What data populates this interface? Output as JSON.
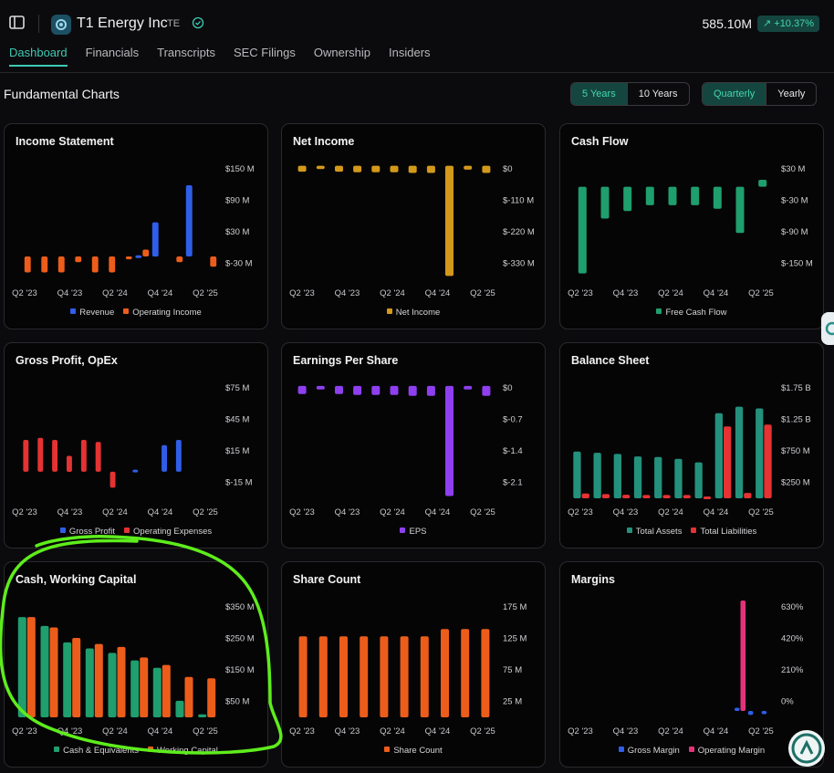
{
  "header": {
    "company": "T1 Energy Inc",
    "ticker": "TE",
    "market_cap": "585.10M",
    "change": "+10.37%"
  },
  "tabs": [
    "Dashboard",
    "Financials",
    "Transcripts",
    "SEC Filings",
    "Ownership",
    "Insiders"
  ],
  "section_title": "Fundamental Charts",
  "range_options": [
    "5 Years",
    "10 Years"
  ],
  "period_options": [
    "Quarterly",
    "Yearly"
  ],
  "colors": {
    "accent": "#3ec9b2",
    "blue": "#2f5ee8",
    "orange": "#ec5d1b",
    "gold": "#d3991a",
    "green": "#1f9e6e",
    "red": "#e53232",
    "purple": "#8e3ff0",
    "teal": "#23917c",
    "pink": "#e2337a"
  },
  "annotation": "green hand-drawn circle",
  "chart_data": [
    {
      "type": "bar",
      "title": "Income Statement",
      "x_ticks": [
        "Q2 '23",
        "Q4 '23",
        "Q2 '24",
        "Q4 '24",
        "Q2 '25"
      ],
      "y_ticks": [
        "$150 M",
        "$90 M",
        "$30 M",
        "$-30 M"
      ],
      "ylim": [
        -40,
        165
      ],
      "series": [
        {
          "name": "Revenue",
          "color": "#2f5ee8",
          "values": [
            0,
            0,
            0,
            0,
            0,
            0,
            0,
            2,
            60,
            0,
            125,
            0
          ]
        },
        {
          "name": "Operating Income",
          "color": "#ec5d1b",
          "values": [
            -28,
            -28,
            -28,
            -10,
            -28,
            -28,
            -5,
            12,
            0,
            -10,
            0,
            -18
          ]
        }
      ]
    },
    {
      "type": "bar",
      "title": "Net Income",
      "x_ticks": [
        "Q2 '23",
        "Q4 '23",
        "Q2 '24",
        "Q4 '24",
        "Q2 '25"
      ],
      "y_ticks": [
        "$0",
        "$-110 M",
        "$-220 M",
        "$-330 M"
      ],
      "ylim": [
        -345,
        10
      ],
      "series": [
        {
          "name": "Net Income",
          "color": "#d3991a",
          "values": [
            -18,
            -10,
            -18,
            -20,
            -20,
            -20,
            -22,
            -22,
            -335,
            -12,
            -22
          ]
        }
      ]
    },
    {
      "type": "bar",
      "title": "Cash Flow",
      "x_ticks": [
        "Q2 '23",
        "Q4 '23",
        "Q2 '24",
        "Q4 '24",
        "Q2 '25"
      ],
      "y_ticks": [
        "$30 M",
        "$-30 M",
        "$-90 M",
        "$-150 M"
      ],
      "ylim": [
        -160,
        42
      ],
      "series": [
        {
          "name": "Free Cash Flow",
          "color": "#1f9e6e",
          "values": [
            -150,
            -55,
            -42,
            -32,
            -32,
            -32,
            -38,
            -80,
            12
          ]
        }
      ]
    },
    {
      "type": "bar",
      "title": "Gross Profit, OpEx",
      "x_ticks": [
        "Q2 '23",
        "Q4 '23",
        "Q2 '24",
        "Q4 '24",
        "Q2 '25"
      ],
      "y_ticks": [
        "$75 M",
        "$45 M",
        "$15 M",
        "$-15 M"
      ],
      "ylim": [
        -25,
        85
      ],
      "series": [
        {
          "name": "Gross Profit",
          "color": "#2f5ee8",
          "values": [
            0,
            0,
            0,
            0,
            0,
            0,
            0,
            0,
            2,
            0,
            25,
            30,
            0,
            0
          ]
        },
        {
          "name": "Operating Expenses",
          "color": "#e53232",
          "values": [
            30,
            32,
            30,
            15,
            30,
            28,
            -15,
            0,
            0,
            0,
            0,
            0,
            0,
            0
          ]
        }
      ]
    },
    {
      "type": "bar",
      "title": "Earnings Per Share",
      "x_ticks": [
        "Q2 '23",
        "Q4 '23",
        "Q2 '24",
        "Q4 '24",
        "Q2 '25"
      ],
      "y_ticks": [
        "$0",
        "$-0.7",
        "$-1.4",
        "$-2.1"
      ],
      "ylim": [
        -2.5,
        0.1
      ],
      "series": [
        {
          "name": "EPS",
          "color": "#8e3ff0",
          "values": [
            -0.18,
            -0.08,
            -0.18,
            -0.2,
            -0.2,
            -0.2,
            -0.22,
            -0.22,
            -2.45,
            -0.08,
            -0.22
          ]
        }
      ]
    },
    {
      "type": "bar",
      "title": "Balance Sheet",
      "x_ticks": [
        "Q2 '23",
        "Q4 '23",
        "Q2 '24",
        "Q4 '24",
        "Q2 '25"
      ],
      "y_ticks": [
        "$1.75 B",
        "$1.25 B",
        "$750 M",
        "$250 M"
      ],
      "ylim": [
        0,
        1950
      ],
      "series": [
        {
          "name": "Total Assets",
          "color": "#23917c",
          "values": [
            780,
            760,
            740,
            700,
            690,
            660,
            600,
            1420,
            1530,
            1500
          ]
        },
        {
          "name": "Total Liabilities",
          "color": "#e53232",
          "values": [
            80,
            70,
            60,
            55,
            55,
            55,
            30,
            1200,
            90,
            1230
          ]
        }
      ]
    },
    {
      "type": "bar",
      "title": "Cash, Working Capital",
      "x_ticks": [
        "Q2 '23",
        "Q4 '23",
        "Q2 '24",
        "Q4 '24",
        "Q2 '25"
      ],
      "y_ticks": [
        "$350 M",
        "$250 M",
        "$150 M",
        "$50 M"
      ],
      "ylim": [
        0,
        390
      ],
      "series": [
        {
          "name": "Cash & Equivalents",
          "color": "#1f9e6e",
          "values": [
            335,
            305,
            250,
            230,
            215,
            190,
            165,
            55,
            10
          ]
        },
        {
          "name": "Working Capital",
          "color": "#ec5d1b",
          "values": [
            335,
            300,
            265,
            245,
            235,
            200,
            175,
            135,
            130
          ]
        }
      ]
    },
    {
      "type": "bar",
      "title": "Share Count",
      "x_ticks": [
        "Q2 '23",
        "Q4 '23",
        "Q2 '24",
        "Q4 '24",
        "Q2 '25"
      ],
      "y_ticks": [
        "175 M",
        "125 M",
        "75 M",
        "25 M"
      ],
      "ylim": [
        0,
        205
      ],
      "series": [
        {
          "name": "Share Count",
          "color": "#ec5d1b",
          "values": [
            142,
            142,
            142,
            142,
            142,
            142,
            142,
            155,
            155,
            155
          ]
        }
      ]
    },
    {
      "type": "bar",
      "title": "Margins",
      "x_ticks": [
        "Q2 '23",
        "Q4 '23",
        "Q2 '24",
        "Q4 '24",
        "Q2 '25"
      ],
      "y_ticks": [
        "630%",
        "420%",
        "210%",
        "0%"
      ],
      "ylim": [
        -40,
        690
      ],
      "series": [
        {
          "name": "Gross Margin",
          "color": "#2f5ee8",
          "values": [
            0,
            0,
            0,
            0,
            0,
            0,
            0,
            0,
            0,
            0,
            0,
            0,
            20,
            -25,
            -20
          ]
        },
        {
          "name": "Operating Margin",
          "color": "#e2337a",
          "values": [
            0,
            0,
            0,
            0,
            0,
            0,
            0,
            0,
            0,
            0,
            0,
            0,
            690,
            0,
            0
          ]
        }
      ]
    }
  ]
}
